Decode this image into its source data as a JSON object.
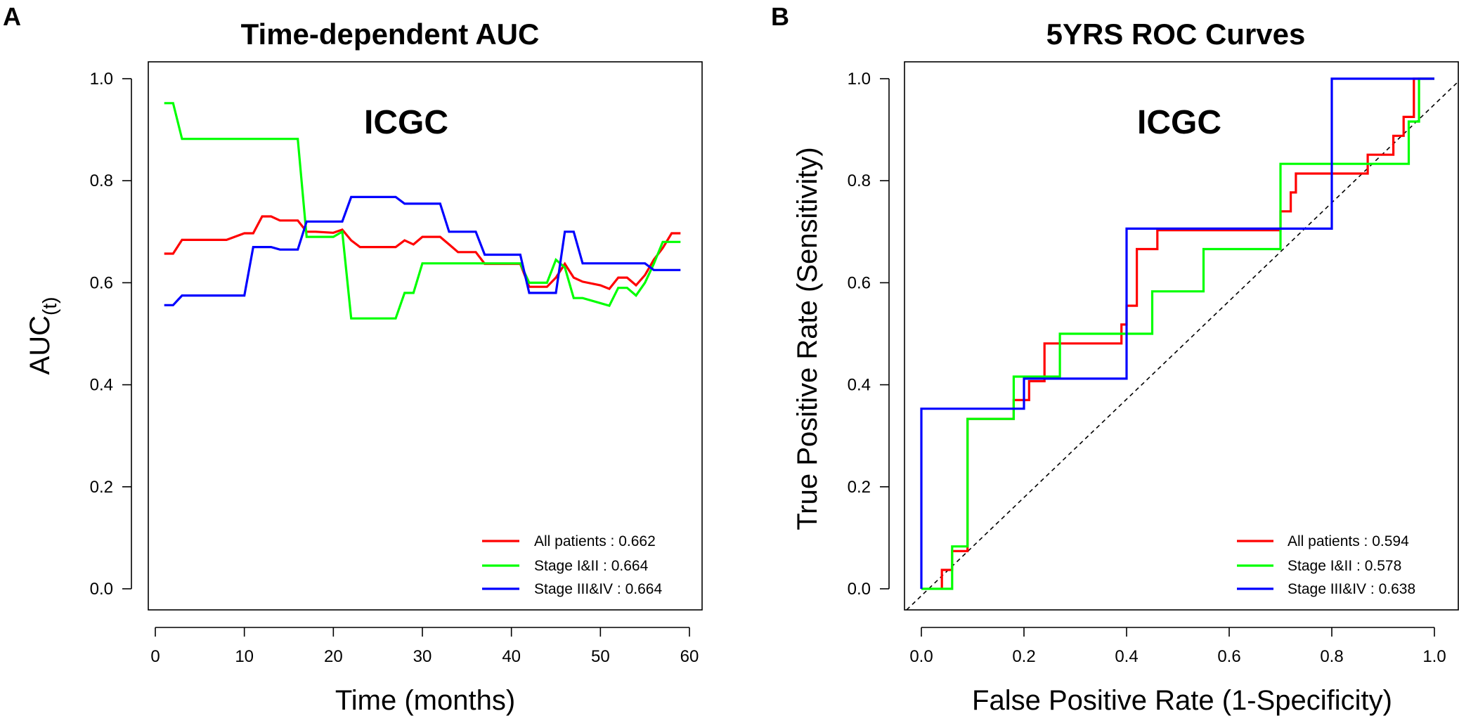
{
  "chart_data": [
    {
      "type": "line",
      "panel_label": "A",
      "title": "Time-dependent AUC",
      "inset_label": "ICGC",
      "xlabel": "Time (months)",
      "ylabel_main": "AUC",
      "ylabel_sub": "(t)",
      "xlim": [
        0,
        60
      ],
      "ylim": [
        0,
        1
      ],
      "xticks": [
        "0",
        "10",
        "20",
        "30",
        "40",
        "50",
        "60"
      ],
      "xtick_values": [
        0,
        10,
        20,
        30,
        40,
        50,
        60
      ],
      "yticks": [
        "0.0",
        "0.2",
        "0.4",
        "0.6",
        "0.8",
        "1.0"
      ],
      "ytick_values": [
        0,
        0.2,
        0.4,
        0.6,
        0.8,
        1.0
      ],
      "legend_position": "bottom-right",
      "series": [
        {
          "name": "All patients : 0.662",
          "color": "#ff0000",
          "points": [
            [
              1,
              0.657
            ],
            [
              2,
              0.657
            ],
            [
              3,
              0.684
            ],
            [
              8,
              0.684
            ],
            [
              10,
              0.697
            ],
            [
              11,
              0.697
            ],
            [
              12,
              0.73
            ],
            [
              13,
              0.73
            ],
            [
              14,
              0.722
            ],
            [
              16,
              0.722
            ],
            [
              17,
              0.7
            ],
            [
              18,
              0.7
            ],
            [
              20,
              0.698
            ],
            [
              21,
              0.704
            ],
            [
              22,
              0.683
            ],
            [
              23,
              0.67
            ],
            [
              26,
              0.67
            ],
            [
              27,
              0.67
            ],
            [
              28,
              0.683
            ],
            [
              29,
              0.675
            ],
            [
              30,
              0.69
            ],
            [
              32,
              0.69
            ],
            [
              33,
              0.675
            ],
            [
              34,
              0.66
            ],
            [
              36,
              0.66
            ],
            [
              37,
              0.637
            ],
            [
              41,
              0.637
            ],
            [
              42,
              0.592
            ],
            [
              44,
              0.592
            ],
            [
              45,
              0.61
            ],
            [
              46,
              0.637
            ],
            [
              47,
              0.61
            ],
            [
              48,
              0.602
            ],
            [
              50,
              0.595
            ],
            [
              51,
              0.588
            ],
            [
              52,
              0.61
            ],
            [
              53,
              0.61
            ],
            [
              54,
              0.595
            ],
            [
              55,
              0.615
            ],
            [
              56,
              0.645
            ],
            [
              57,
              0.668
            ],
            [
              58,
              0.697
            ],
            [
              59,
              0.697
            ]
          ]
        },
        {
          "name": "Stage I&II : 0.664",
          "color": "#00ff00",
          "points": [
            [
              1,
              0.952
            ],
            [
              2,
              0.952
            ],
            [
              3,
              0.882
            ],
            [
              16,
              0.882
            ],
            [
              17,
              0.69
            ],
            [
              20,
              0.69
            ],
            [
              21,
              0.7
            ],
            [
              22,
              0.53
            ],
            [
              26,
              0.53
            ],
            [
              27,
              0.53
            ],
            [
              28,
              0.58
            ],
            [
              29,
              0.58
            ],
            [
              30,
              0.638
            ],
            [
              33,
              0.638
            ],
            [
              41,
              0.638
            ],
            [
              42,
              0.6
            ],
            [
              44,
              0.6
            ],
            [
              45,
              0.645
            ],
            [
              46,
              0.63
            ],
            [
              47,
              0.57
            ],
            [
              48,
              0.57
            ],
            [
              50,
              0.56
            ],
            [
              51,
              0.555
            ],
            [
              52,
              0.59
            ],
            [
              53,
              0.59
            ],
            [
              54,
              0.575
            ],
            [
              55,
              0.6
            ],
            [
              56,
              0.637
            ],
            [
              57,
              0.68
            ],
            [
              59,
              0.68
            ]
          ]
        },
        {
          "name": "Stage III&IV : 0.664",
          "color": "#0000ff",
          "points": [
            [
              1,
              0.556
            ],
            [
              2,
              0.556
            ],
            [
              3,
              0.575
            ],
            [
              10,
              0.575
            ],
            [
              11,
              0.67
            ],
            [
              13,
              0.67
            ],
            [
              14,
              0.665
            ],
            [
              16,
              0.665
            ],
            [
              17,
              0.72
            ],
            [
              21,
              0.72
            ],
            [
              22,
              0.768
            ],
            [
              27,
              0.768
            ],
            [
              28,
              0.755
            ],
            [
              32,
              0.755
            ],
            [
              33,
              0.7
            ],
            [
              36,
              0.7
            ],
            [
              37,
              0.655
            ],
            [
              41,
              0.655
            ],
            [
              42,
              0.58
            ],
            [
              45,
              0.58
            ],
            [
              46,
              0.7
            ],
            [
              47,
              0.7
            ],
            [
              48,
              0.638
            ],
            [
              55,
              0.638
            ],
            [
              56,
              0.625
            ],
            [
              59,
              0.625
            ]
          ]
        }
      ]
    },
    {
      "type": "line",
      "panel_label": "B",
      "title": "5YRS ROC Curves",
      "inset_label": "ICGC",
      "xlabel": "False Positive Rate (1-Specificity)",
      "ylabel": "True Positive Rate (Sensitivity)",
      "xlim": [
        0,
        1
      ],
      "ylim": [
        0,
        1
      ],
      "xticks": [
        "0.0",
        "0.2",
        "0.4",
        "0.6",
        "0.8",
        "1.0"
      ],
      "xtick_values": [
        0,
        0.2,
        0.4,
        0.6,
        0.8,
        1.0
      ],
      "yticks": [
        "0.0",
        "0.2",
        "0.4",
        "0.6",
        "0.8",
        "1.0"
      ],
      "ytick_values": [
        0,
        0.2,
        0.4,
        0.6,
        0.8,
        1.0
      ],
      "diagonal_reference": true,
      "legend_position": "bottom-right",
      "series": [
        {
          "name": "All patients : 0.594",
          "color": "#ff0000",
          "points": [
            [
              0.04,
              0
            ],
            [
              0.04,
              0.037
            ],
            [
              0.06,
              0.037
            ],
            [
              0.06,
              0.074
            ],
            [
              0.09,
              0.074
            ],
            [
              0.09,
              0.333
            ],
            [
              0.18,
              0.333
            ],
            [
              0.18,
              0.37
            ],
            [
              0.21,
              0.37
            ],
            [
              0.21,
              0.407
            ],
            [
              0.24,
              0.407
            ],
            [
              0.24,
              0.481
            ],
            [
              0.39,
              0.481
            ],
            [
              0.39,
              0.518
            ],
            [
              0.4,
              0.518
            ],
            [
              0.4,
              0.555
            ],
            [
              0.42,
              0.555
            ],
            [
              0.42,
              0.666
            ],
            [
              0.46,
              0.666
            ],
            [
              0.46,
              0.703
            ],
            [
              0.7,
              0.703
            ],
            [
              0.7,
              0.74
            ],
            [
              0.72,
              0.74
            ],
            [
              0.72,
              0.777
            ],
            [
              0.73,
              0.777
            ],
            [
              0.73,
              0.814
            ],
            [
              0.87,
              0.814
            ],
            [
              0.87,
              0.851
            ],
            [
              0.92,
              0.851
            ],
            [
              0.92,
              0.888
            ],
            [
              0.94,
              0.888
            ],
            [
              0.94,
              0.925
            ],
            [
              0.96,
              0.925
            ],
            [
              0.96,
              1.0
            ],
            [
              1.0,
              1.0
            ]
          ]
        },
        {
          "name": "Stage I&II : 0.578",
          "color": "#00ff00",
          "points": [
            [
              0.0,
              0
            ],
            [
              0.06,
              0
            ],
            [
              0.06,
              0.083
            ],
            [
              0.09,
              0.083
            ],
            [
              0.09,
              0.333
            ],
            [
              0.18,
              0.333
            ],
            [
              0.18,
              0.416
            ],
            [
              0.27,
              0.416
            ],
            [
              0.27,
              0.5
            ],
            [
              0.45,
              0.5
            ],
            [
              0.45,
              0.583
            ],
            [
              0.55,
              0.583
            ],
            [
              0.55,
              0.666
            ],
            [
              0.7,
              0.666
            ],
            [
              0.7,
              0.833
            ],
            [
              0.95,
              0.833
            ],
            [
              0.95,
              0.916
            ],
            [
              0.97,
              0.916
            ],
            [
              0.97,
              1.0
            ],
            [
              1.0,
              1.0
            ]
          ]
        },
        {
          "name": "Stage III&IV : 0.638",
          "color": "#0000ff",
          "points": [
            [
              0.0,
              0.0
            ],
            [
              0.0,
              0.353
            ],
            [
              0.2,
              0.353
            ],
            [
              0.2,
              0.412
            ],
            [
              0.4,
              0.412
            ],
            [
              0.4,
              0.706
            ],
            [
              0.8,
              0.706
            ],
            [
              0.8,
              1.0
            ],
            [
              1.0,
              1.0
            ]
          ]
        }
      ]
    }
  ]
}
